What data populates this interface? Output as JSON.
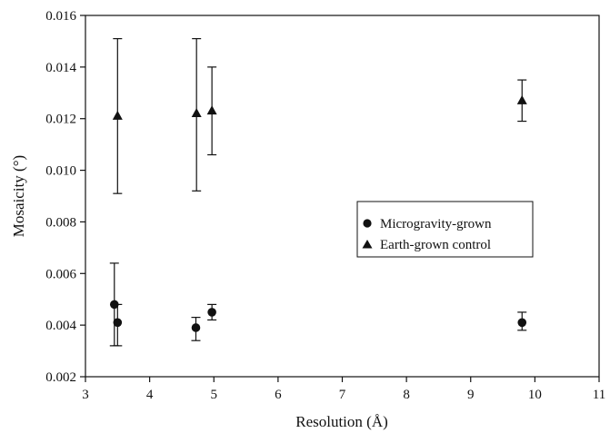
{
  "chart_data": {
    "type": "scatter",
    "xlabel": "Resolution (Å)",
    "ylabel": "Mosaicity (°)",
    "xlim": [
      3,
      11
    ],
    "ylim": [
      0.002,
      0.016
    ],
    "x_ticks": [
      "3",
      "4",
      "5",
      "6",
      "7",
      "8",
      "9",
      "10",
      "11"
    ],
    "y_ticks": [
      "0.002",
      "0.004",
      "0.006",
      "0.008",
      "0.010",
      "0.012",
      "0.014",
      "0.016"
    ],
    "grid": false,
    "legend_position": "right-middle",
    "series": [
      {
        "name": "Microgravity-grown",
        "marker": "circle",
        "points": [
          {
            "x": 3.45,
            "y": 0.0048,
            "err_low": 0.0032,
            "err_high": 0.0064
          },
          {
            "x": 3.5,
            "y": 0.0041,
            "err_low": 0.0032,
            "err_high": 0.0048
          },
          {
            "x": 4.72,
            "y": 0.0039,
            "err_low": 0.0034,
            "err_high": 0.0043
          },
          {
            "x": 4.97,
            "y": 0.0045,
            "err_low": 0.0042,
            "err_high": 0.0048
          },
          {
            "x": 9.8,
            "y": 0.0041,
            "err_low": 0.0038,
            "err_high": 0.0045
          }
        ]
      },
      {
        "name": "Earth-grown control",
        "marker": "triangle",
        "points": [
          {
            "x": 3.5,
            "y": 0.0121,
            "err_low": 0.0091,
            "err_high": 0.0151
          },
          {
            "x": 4.73,
            "y": 0.0122,
            "err_low": 0.0092,
            "err_high": 0.0151
          },
          {
            "x": 4.97,
            "y": 0.0123,
            "err_low": 0.0106,
            "err_high": 0.014
          },
          {
            "x": 9.8,
            "y": 0.0127,
            "err_low": 0.0119,
            "err_high": 0.0135
          }
        ]
      }
    ],
    "colors": {
      "ink": "#111111",
      "background": "#ffffff"
    }
  }
}
